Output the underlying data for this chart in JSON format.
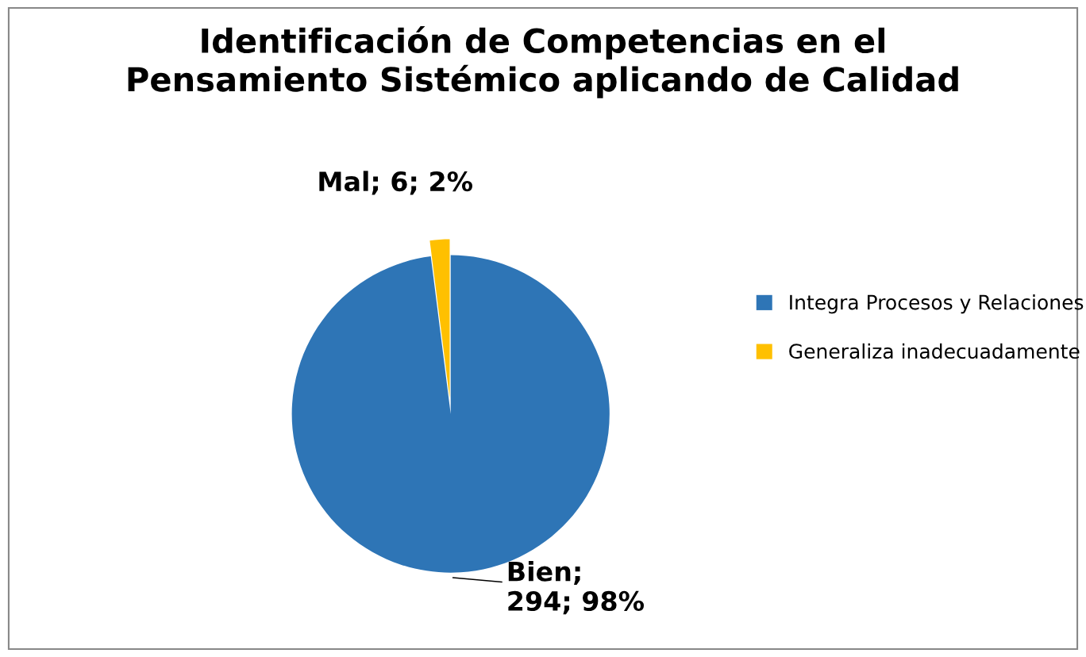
{
  "chart_data": {
    "type": "pie",
    "title": "Identificación de Competencias en el\nPensamiento Sistémico aplicando de Calidad",
    "categories": [
      "Integra Procesos y Relaciones",
      "Generaliza inadecuadamente"
    ],
    "values": [
      294,
      6
    ],
    "colors": [
      "#2e75b6",
      "#ffc000"
    ],
    "value_labels": [
      "Bien;\n294; 98%",
      "Mal; 6; 2%"
    ],
    "legend": "right"
  }
}
